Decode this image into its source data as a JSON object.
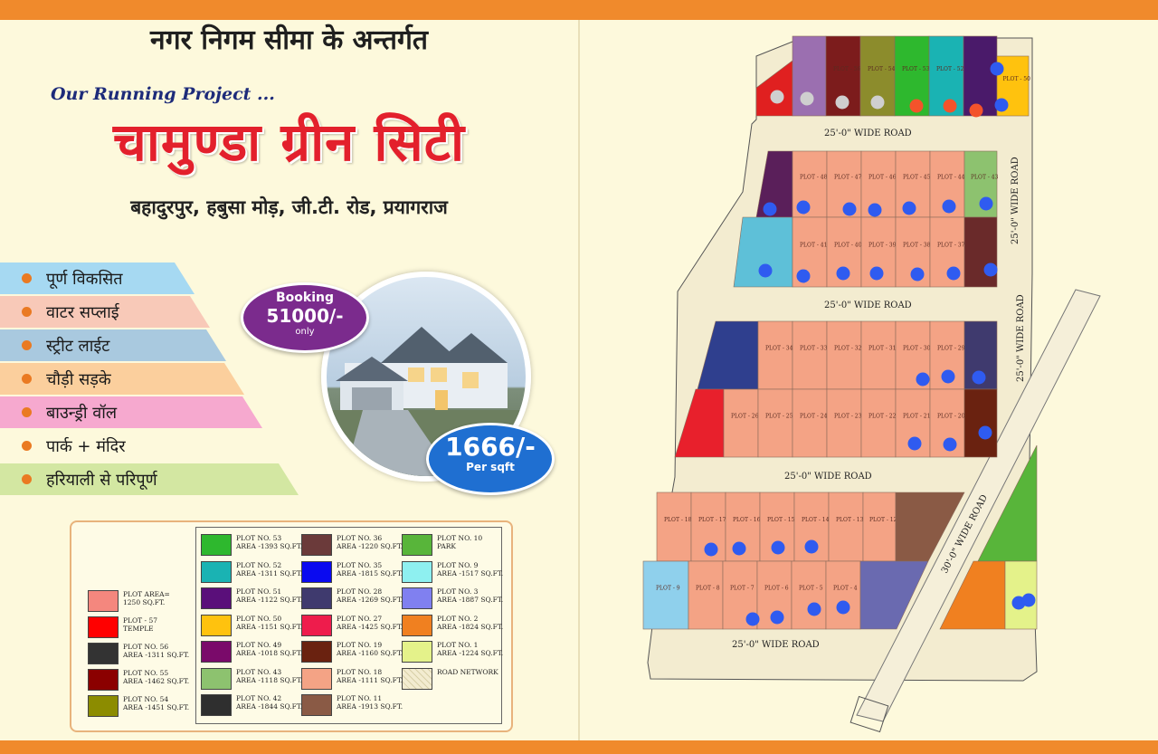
{
  "header": {
    "hindi_top": "नगर निगम सीमा के अन्तर्गत",
    "running": "Our Running Project ...",
    "title": "चामुण्डा ग्रीन सिटी",
    "address": "बहादुरपुर, हबुसा मोड़, जी.टी. रोड, प्रयागराज"
  },
  "features": [
    {
      "label": "पूर्ण विकसित",
      "color": "#a6d9f2"
    },
    {
      "label": "वाटर सप्लाई",
      "color": "#f8c9b8"
    },
    {
      "label": "स्ट्रीट लाईट",
      "color": "#a9c9df"
    },
    {
      "label": "चौड़ी सड़के",
      "color": "#fbcf9d"
    },
    {
      "label": "बाउन्ड्री वॉल",
      "color": "#f6a9cf"
    },
    {
      "label": "पार्क + मंदिर",
      "color": "#fdf9dc"
    },
    {
      "label": "हरियाली से परिपूर्ण",
      "color": "#d3e7a2"
    }
  ],
  "booking": {
    "line1": "Booking",
    "amount": "51000/-",
    "line3": "only"
  },
  "price": {
    "amount": "1666/-",
    "unit": "Per sqft"
  },
  "legend": {
    "left": [
      {
        "label": "PLOT AREA=\n1250 SQ.FT.",
        "color": "#f4877e"
      },
      {
        "label": "PLOT - 57\nTEMPLE",
        "color": "#ff0000"
      },
      {
        "label": "PLOT NO. 56\nAREA -1311 SQ.FT.",
        "color": "#333333"
      },
      {
        "label": "PLOT NO. 55\nAREA -1462 SQ.FT.",
        "color": "#8b0000"
      },
      {
        "label": "PLOT NO. 54\nAREA -1451 SQ.FT.",
        "color": "#8c8c00"
      }
    ],
    "col1": [
      {
        "label": "PLOT NO. 53\nAREA -1393 SQ.FT.",
        "color": "#2eb82e"
      },
      {
        "label": "PLOT NO. 52\nAREA -1311 SQ.FT.",
        "color": "#1ab3b3"
      },
      {
        "label": "PLOT NO. 51\nAREA -1122 SQ.FT.",
        "color": "#5a0f7a"
      },
      {
        "label": "PLOT NO. 50\nAREA -1151 SQ.FT.",
        "color": "#ffc20e"
      },
      {
        "label": "PLOT NO. 49\nAREA -1018 SQ.FT.",
        "color": "#7a0a6a"
      },
      {
        "label": "PLOT NO. 43\nAREA -1118 SQ.FT.",
        "color": "#8dc26f"
      },
      {
        "label": "PLOT NO. 42\nAREA -1844 SQ.FT.",
        "color": "#2f2f2f"
      }
    ],
    "col2": [
      {
        "label": "PLOT NO. 36\nAREA -1220 SQ.FT.",
        "color": "#6b3a3a"
      },
      {
        "label": "PLOT NO. 35\nAREA -1815 SQ.FT.",
        "color": "#0a0af0"
      },
      {
        "label": "PLOT NO. 28\nAREA -1269 SQ.FT.",
        "color": "#3f3a6e"
      },
      {
        "label": "PLOT NO. 27\nAREA -1425 SQ.FT.",
        "color": "#ee1c4c"
      },
      {
        "label": "PLOT NO. 19\nAREA -1160 SQ.FT.",
        "color": "#6a2210"
      },
      {
        "label": "PLOT NO. 18\nAREA -1111 SQ.FT.",
        "color": "#f4a385"
      },
      {
        "label": "PLOT NO. 11\nAREA -1913 SQ.FT.",
        "color": "#8a5a45"
      }
    ],
    "col3": [
      {
        "label": "PLOT NO. 10\nPARK",
        "color": "#58b53a"
      },
      {
        "label": "PLOT NO. 9\nAREA -1517 SQ.FT.",
        "color": "#8ef0f0"
      },
      {
        "label": "PLOT NO. 3\nAREA -1887 SQ.FT.",
        "color": "#8080f0"
      },
      {
        "label": "PLOT NO. 2\nAREA -1824 SQ.FT.",
        "color": "#f08020"
      },
      {
        "label": "PLOT NO. 1\nAREA -1224 SQ.FT.",
        "color": "#e4f28a"
      },
      {
        "label": "ROAD NETWORK",
        "color": "#f3ecd0"
      }
    ]
  },
  "map": {
    "roads": [
      "25'-0\" WIDE ROAD",
      "25'-0\" WIDE ROAD",
      "25'-0\" WIDE ROAD",
      "25'-0\" WIDE ROAD",
      "25'-0\" WIDE ROAD",
      "25'-0\" WIDE ROAD",
      "30'-0\" WIDE ROAD"
    ],
    "plots": [
      "PLOT - 56",
      "PLOT - 55",
      "PLOT - 54",
      "PLOT - 53",
      "PLOT - 52",
      "PLOT - 50",
      "PLOT - 48",
      "PLOT - 47",
      "PLOT - 46",
      "PLOT - 45",
      "PLOT - 44",
      "PLOT - 43",
      "PLOT - 42",
      "PLOT - 41",
      "PLOT - 40",
      "PLOT - 39",
      "PLOT - 38",
      "PLOT - 37",
      "PLOT - 34",
      "PLOT - 33",
      "PLOT - 32",
      "PLOT - 31",
      "PLOT - 30",
      "PLOT - 29",
      "PLOT - 27",
      "PLOT - 26",
      "PLOT - 25",
      "PLOT - 24",
      "PLOT - 23",
      "PLOT - 22",
      "PLOT - 21",
      "PLOT - 20",
      "PLOT - 18",
      "PLOT - 17",
      "PLOT - 16",
      "PLOT - 15",
      "PLOT - 14",
      "PLOT - 13",
      "PLOT - 12",
      "PLOT - 11",
      "PLOT - 10",
      "PLOT - 9",
      "PLOT - 8",
      "PLOT - 7",
      "PLOT - 6",
      "PLOT - 5",
      "PLOT - 4",
      "PLOT - 3",
      "PLOT - 2",
      "PLOT - 1"
    ]
  }
}
